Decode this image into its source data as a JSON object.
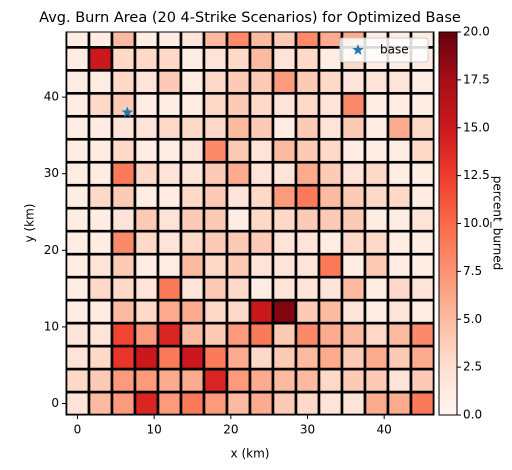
{
  "chart_data": {
    "type": "heatmap",
    "title": "Avg. Burn Area (20 4-Strike Scenarios) for Optimized Base",
    "x_label": "x (km)",
    "y_label": "y (km)",
    "colorbar_label": "percent_burned",
    "colormap": "Reds",
    "x": [
      0,
      3,
      6,
      9,
      12,
      15,
      18,
      21,
      24,
      27,
      30,
      33,
      36,
      39,
      42,
      45
    ],
    "y": [
      0,
      3,
      6,
      9,
      12,
      15,
      18,
      21,
      24,
      27,
      30,
      33,
      36,
      39,
      42,
      45,
      48
    ],
    "z": [
      [
        2,
        5,
        7,
        14,
        7,
        9,
        7,
        5,
        6,
        4,
        3,
        2,
        2,
        6,
        6,
        9
      ],
      [
        3,
        4,
        7,
        7,
        6,
        6,
        14,
        7,
        6,
        5,
        5,
        3,
        4,
        4,
        2,
        4
      ],
      [
        2,
        3,
        13,
        15,
        9,
        15,
        9,
        6,
        3,
        4,
        5,
        6,
        4,
        6,
        4,
        6
      ],
      [
        2,
        2,
        12,
        7,
        14,
        5,
        4,
        7,
        9,
        4,
        8,
        6,
        5,
        3,
        5,
        8
      ],
      [
        1,
        1,
        5,
        3,
        6,
        6,
        3,
        3,
        15,
        19,
        4,
        5,
        2,
        1,
        2,
        1
      ],
      [
        1,
        3,
        3,
        2,
        9,
        2,
        4,
        3,
        1,
        2,
        2,
        2,
        5,
        1,
        3,
        2
      ],
      [
        1,
        2,
        4,
        1,
        1,
        5,
        3,
        4,
        2,
        2,
        2,
        9,
        1,
        4,
        1,
        1
      ],
      [
        1,
        1,
        8,
        3,
        2,
        3,
        4,
        4,
        4,
        2,
        2,
        1,
        3,
        3,
        1,
        1
      ],
      [
        1,
        1,
        2,
        4,
        2,
        4,
        4,
        1,
        3,
        3,
        4,
        4,
        4,
        1,
        1,
        2
      ],
      [
        1,
        3,
        4,
        1,
        1,
        3,
        4,
        2,
        3,
        7,
        9,
        5,
        4,
        3,
        3,
        1
      ],
      [
        1,
        1,
        9,
        3,
        2,
        2,
        4,
        6,
        2,
        2,
        6,
        4,
        2,
        3,
        1,
        1
      ],
      [
        1,
        1,
        3,
        1,
        1,
        2,
        8,
        4,
        2,
        5,
        4,
        3,
        1,
        1,
        1,
        3
      ],
      [
        1,
        1,
        2,
        2,
        3,
        3,
        3,
        5,
        4,
        1,
        4,
        2,
        4,
        1,
        6,
        3
      ],
      [
        1,
        3,
        4,
        1,
        1,
        1,
        3,
        4,
        3,
        2,
        3,
        2,
        8,
        1,
        1,
        1
      ],
      [
        1,
        1,
        3,
        2,
        4,
        1,
        3,
        4,
        4,
        7,
        4,
        3,
        2,
        2,
        2,
        1
      ],
      [
        1,
        15,
        3,
        3,
        3,
        1,
        2,
        3,
        5,
        2,
        3,
        1,
        3,
        1,
        1,
        1
      ],
      [
        1,
        1,
        5,
        1,
        1,
        2,
        5,
        8,
        5,
        4,
        8,
        6,
        6,
        1,
        1,
        1
      ]
    ],
    "series": [
      {
        "name": "base",
        "color": "#1f77b4",
        "x": [
          6.5
        ],
        "values": [
          38
        ]
      }
    ],
    "legend": "upper right",
    "xlim": [
      -1.5,
      46.5
    ],
    "ylim": [
      -1.5,
      48.5
    ],
    "xticks": [
      0,
      10,
      20,
      30,
      40
    ],
    "yticks": [
      0,
      10,
      20,
      30,
      40
    ],
    "clim": [
      0,
      20
    ],
    "cticks": [
      {
        "value": 0,
        "label": "0.0"
      },
      {
        "value": 2.5,
        "label": "2.5"
      },
      {
        "value": 5,
        "label": "5.0"
      },
      {
        "value": 7.5,
        "label": "7.5"
      },
      {
        "value": 10,
        "label": "10.0"
      },
      {
        "value": 12.5,
        "label": "12.5"
      },
      {
        "value": 15,
        "label": "15.0"
      },
      {
        "value": 17.5,
        "label": "17.5"
      },
      {
        "value": 20,
        "label": "20.0"
      }
    ]
  }
}
